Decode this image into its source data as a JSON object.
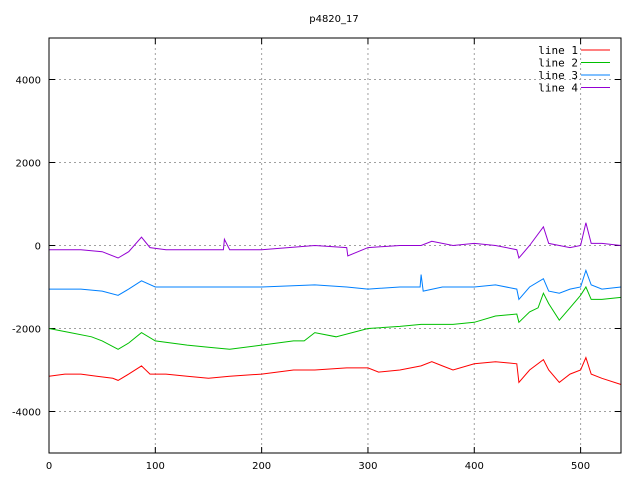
{
  "chart_data": {
    "type": "line",
    "title": "p4820_17",
    "xlabel": "",
    "ylabel": "",
    "xlim": [
      0,
      538
    ],
    "ylim": [
      -5000,
      5000
    ],
    "xticks": [
      0,
      100,
      200,
      300,
      400,
      500
    ],
    "yticks": [
      -4000,
      -2000,
      0,
      2000,
      4000
    ],
    "grid": true,
    "legend_position": "top-right",
    "series": [
      {
        "name": "line 1",
        "color": "#ff0000",
        "x": [
          0,
          15,
          30,
          45,
          60,
          65,
          75,
          87,
          95,
          110,
          130,
          150,
          170,
          200,
          230,
          250,
          280,
          300,
          310,
          330,
          350,
          360,
          370,
          380,
          400,
          420,
          440,
          442,
          452,
          465,
          470,
          480,
          490,
          500,
          505,
          510,
          520,
          538
        ],
        "y": [
          -3150,
          -3100,
          -3100,
          -3150,
          -3200,
          -3250,
          -3100,
          -2900,
          -3100,
          -3100,
          -3150,
          -3200,
          -3150,
          -3100,
          -3000,
          -3000,
          -2950,
          -2950,
          -3050,
          -3000,
          -2900,
          -2800,
          -2900,
          -3000,
          -2850,
          -2800,
          -2850,
          -3300,
          -3000,
          -2750,
          -3000,
          -3300,
          -3100,
          -3000,
          -2700,
          -3100,
          -3200,
          -3350
        ]
      },
      {
        "name": "line 2",
        "color": "#00c000",
        "x": [
          0,
          20,
          40,
          50,
          65,
          75,
          87,
          100,
          130,
          150,
          170,
          200,
          230,
          240,
          250,
          270,
          300,
          330,
          350,
          380,
          400,
          420,
          440,
          442,
          452,
          460,
          465,
          470,
          480,
          490,
          500,
          505,
          510,
          520,
          538
        ],
        "y": [
          -2000,
          -2100,
          -2200,
          -2300,
          -2500,
          -2350,
          -2100,
          -2300,
          -2400,
          -2450,
          -2500,
          -2400,
          -2300,
          -2300,
          -2100,
          -2200,
          -2000,
          -1950,
          -1900,
          -1900,
          -1850,
          -1700,
          -1650,
          -1850,
          -1600,
          -1500,
          -1150,
          -1400,
          -1800,
          -1500,
          -1200,
          -1000,
          -1300,
          -1300,
          -1250
        ]
      },
      {
        "name": "line 3",
        "color": "#0080ff",
        "x": [
          0,
          30,
          50,
          65,
          75,
          87,
          100,
          150,
          200,
          250,
          280,
          300,
          330,
          349,
          350,
          352,
          370,
          400,
          420,
          440,
          442,
          452,
          465,
          470,
          480,
          490,
          500,
          505,
          510,
          520,
          538
        ],
        "y": [
          -1050,
          -1050,
          -1100,
          -1200,
          -1050,
          -850,
          -1000,
          -1000,
          -1000,
          -950,
          -1000,
          -1050,
          -1000,
          -1000,
          -700,
          -1100,
          -1000,
          -1000,
          -950,
          -1050,
          -1300,
          -1000,
          -800,
          -1100,
          -1150,
          -1050,
          -1000,
          -600,
          -950,
          -1050,
          -1000
        ]
      },
      {
        "name": "line 4",
        "color": "#9400d3",
        "x": [
          0,
          30,
          50,
          65,
          75,
          87,
          95,
          110,
          150,
          164,
          165,
          170,
          200,
          250,
          280,
          281,
          300,
          330,
          350,
          360,
          380,
          400,
          420,
          440,
          442,
          452,
          465,
          470,
          480,
          490,
          500,
          505,
          510,
          520,
          538
        ],
        "y": [
          -100,
          -100,
          -150,
          -300,
          -150,
          200,
          -50,
          -100,
          -100,
          -100,
          150,
          -100,
          -100,
          0,
          -50,
          -250,
          -50,
          0,
          0,
          100,
          0,
          50,
          0,
          -100,
          -300,
          0,
          450,
          50,
          0,
          -50,
          0,
          550,
          50,
          50,
          0
        ]
      }
    ]
  }
}
